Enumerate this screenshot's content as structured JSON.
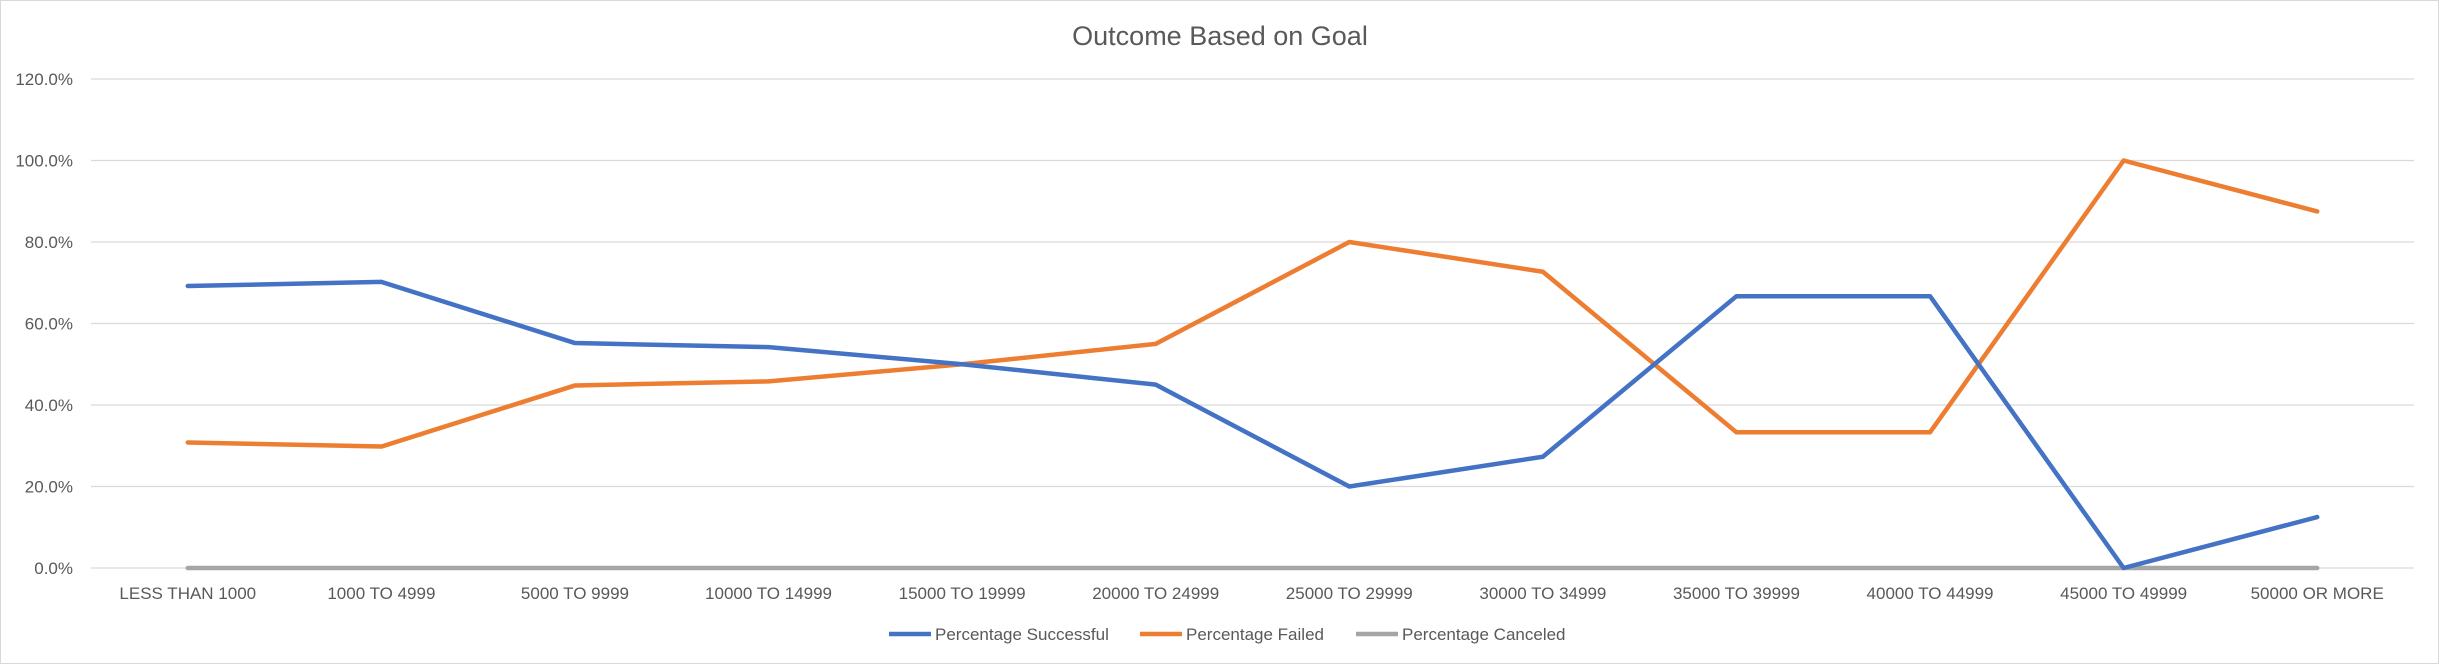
{
  "chart_data": {
    "type": "line",
    "title": "Outcome Based on Goal",
    "xlabel": "",
    "ylabel": "",
    "categories": [
      "LESS THAN 1000",
      "1000 TO 4999",
      "5000 TO 9999",
      "10000 TO 14999",
      "15000 TO 19999",
      "20000 TO 24999",
      "25000 TO 29999",
      "30000 TO 34999",
      "35000 TO 39999",
      "40000 TO 44999",
      "45000 TO 49999",
      "50000 OR MORE"
    ],
    "ylim": [
      0,
      120
    ],
    "y_ticks": [
      "0.0%",
      "20.0%",
      "40.0%",
      "60.0%",
      "80.0%",
      "100.0%",
      "120.0%"
    ],
    "grid": true,
    "legend_position": "bottom",
    "series": [
      {
        "name": "Percentage Successful",
        "color": "#4472c4",
        "values": [
          69.2,
          70.2,
          55.2,
          54.2,
          50.0,
          45.0,
          20.0,
          27.3,
          66.7,
          66.7,
          0.0,
          12.5
        ]
      },
      {
        "name": "Percentage Failed",
        "color": "#ed7d31",
        "values": [
          30.8,
          29.8,
          44.8,
          45.8,
          50.0,
          55.0,
          80.0,
          72.7,
          33.3,
          33.3,
          100.0,
          87.5
        ]
      },
      {
        "name": "Percentage Canceled",
        "color": "#a5a5a5",
        "values": [
          0,
          0,
          0,
          0,
          0,
          0,
          0,
          0,
          0,
          0,
          0,
          0
        ]
      }
    ]
  }
}
